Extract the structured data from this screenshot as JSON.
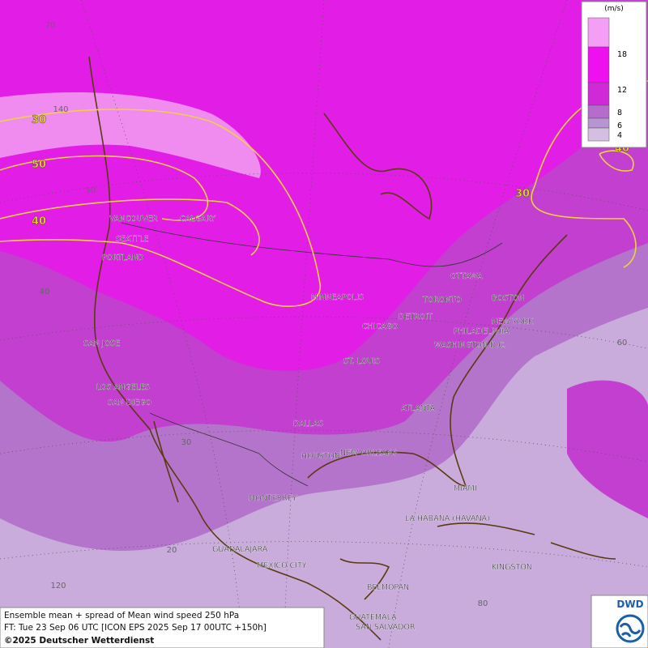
{
  "legend": {
    "unit": "(m/s)",
    "levels": [
      18,
      12,
      8,
      6,
      4
    ]
  },
  "cities": [
    "VANCOUVER",
    "CALGARY",
    "SEATTLE",
    "PORTLAND",
    "MINNEAPOLIS",
    "TORONTO",
    "OTTAWA",
    "BOSTON",
    "DETROIT",
    "CHICAGO",
    "NEW YORK",
    "PHILADELPHIA",
    "WASHINGTON D.C.",
    "SAN JOSE",
    "ST. LOUIS",
    "LOS ANGELES",
    "SAN DIEGO",
    "ATLANTA",
    "DALLAS",
    "HOUSTON",
    "NEW ORLEANS",
    "MONTERREY",
    "MIAMI",
    "LA HABANA (HAVANA)",
    "GUADALAJARA",
    "MEXICO CITY",
    "KINGSTON",
    "BELMOPAN",
    "GUATEMALA",
    "SAN SALVADOR"
  ],
  "contour_labels": [
    30,
    50,
    40,
    30,
    40
  ],
  "graticule_labels": [
    70,
    140,
    50,
    40,
    30,
    20,
    120,
    60,
    80
  ],
  "caption": {
    "line1": "Ensemble mean + spread of Mean wind speed 250 hPa",
    "line2": "FT: Tue 23 Sep 06 UTC [ICON EPS 2025 Sep 17 00UTC +150h]",
    "copyright": "©2025 Deutscher Wetterdienst"
  },
  "logo": "DWD"
}
